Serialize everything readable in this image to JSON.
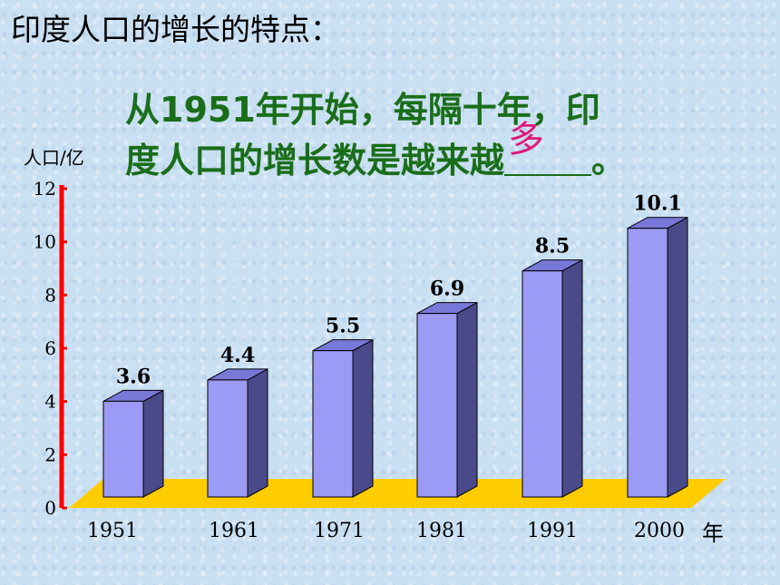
{
  "heading": "印度人口的增长的特点：",
  "conclusion": {
    "line1": "从1951年开始，每隔十年，印",
    "line2_prefix": "度人口的增长数是越来越",
    "answer": "多",
    "line2_suffix": "。"
  },
  "chart_data": {
    "type": "bar",
    "ylabel": "人口/亿",
    "xlabel": "年",
    "categories": [
      "1951",
      "1961",
      "1971",
      "1981",
      "1991",
      "2000"
    ],
    "values": [
      3.6,
      4.4,
      5.5,
      6.9,
      8.5,
      10.1
    ],
    "value_labels": [
      "3.6",
      "4.4",
      "5.5",
      "6.9",
      "8.5",
      "10.1"
    ],
    "ylim": [
      0,
      12
    ],
    "yticks": [
      0,
      2,
      4,
      6,
      8,
      10,
      12
    ],
    "three_d": true,
    "colors": {
      "bar_front": "#9b9bf5",
      "bar_top": "#7878d8",
      "bar_side": "#4a4a8a",
      "floor": "#ffcc00",
      "axis": "#ff0000"
    }
  }
}
